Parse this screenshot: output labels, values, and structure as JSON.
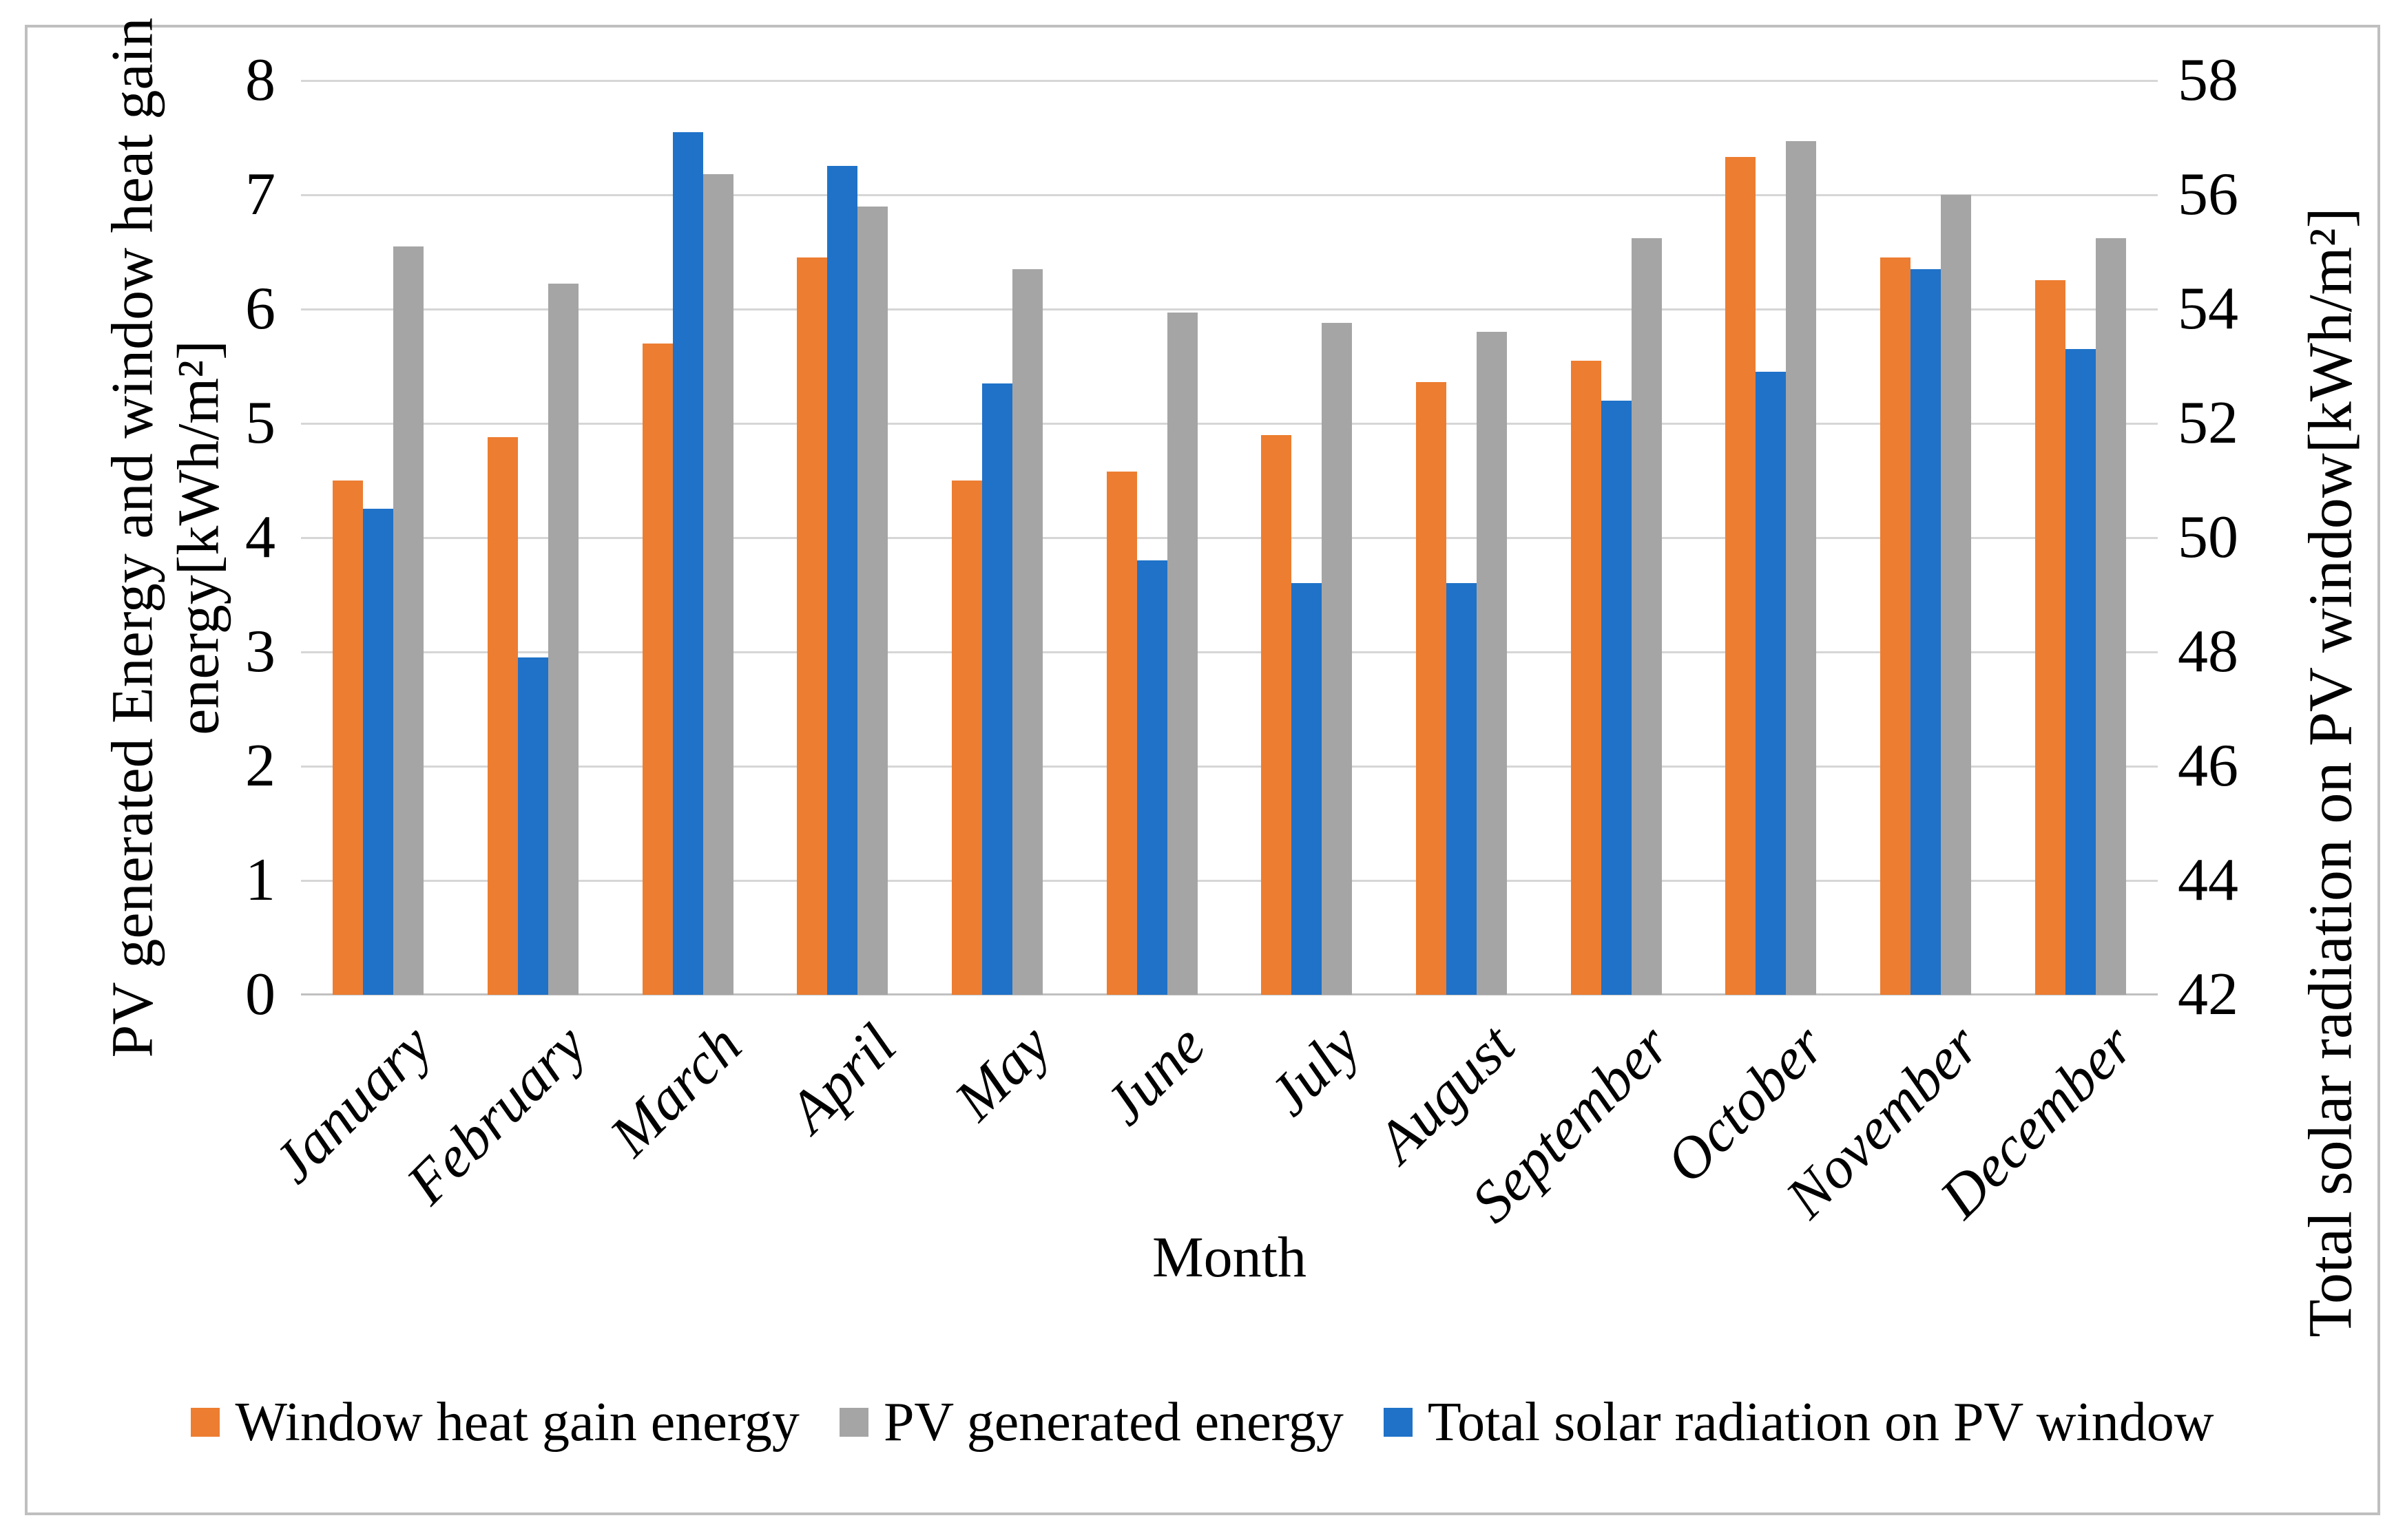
{
  "figure": {
    "background": "#ffffff",
    "border_color": "#bfbfbf"
  },
  "chart_data": {
    "type": "bar",
    "title": "",
    "categories": [
      "January",
      "February",
      "March",
      "April",
      "May",
      "June",
      "July",
      "August",
      "September",
      "October",
      "November",
      "December"
    ],
    "series": [
      {
        "name": "Window heat gain energy",
        "key": "window-heat-gain-energy",
        "color": "#ED7D31",
        "axis": "left",
        "values": [
          4.5,
          4.88,
          5.7,
          6.45,
          4.5,
          4.58,
          4.9,
          5.36,
          5.55,
          7.33,
          6.45,
          6.25
        ]
      },
      {
        "name": "Total solar radiation on PV window",
        "key": "total-solar-radiation-on-pv-window",
        "color": "#1F72C8",
        "axis": "right",
        "values": [
          50.5,
          47.9,
          57.1,
          56.5,
          52.7,
          49.6,
          49.2,
          49.2,
          52.4,
          52.9,
          54.7,
          53.3
        ]
      },
      {
        "name": "PV generated energy",
        "key": "pv-generated-energy",
        "color": "#A5A5A5",
        "axis": "left",
        "values": [
          6.55,
          6.22,
          7.18,
          6.9,
          6.35,
          5.97,
          5.88,
          5.8,
          6.62,
          7.47,
          7.0,
          6.62
        ]
      }
    ],
    "left_axis": {
      "title_line1": "PV generated Energy and window heat gain",
      "title_line2": "energy[kWh/m²]",
      "min": 0,
      "max": 8,
      "ticks": [
        0,
        1,
        2,
        3,
        4,
        5,
        6,
        7,
        8
      ]
    },
    "right_axis": {
      "title": "Total solar radiation on PV window[kWh/m²]",
      "min": 42,
      "max": 58,
      "ticks": [
        42,
        44,
        46,
        48,
        50,
        52,
        54,
        56,
        58
      ]
    },
    "x_axis": {
      "title": "Month"
    },
    "grid": "horizontal",
    "legend_position": "bottom",
    "legend": [
      {
        "label": "Window heat gain energy",
        "key": "window-heat-gain-energy",
        "color": "#ED7D31"
      },
      {
        "label": "PV generated energy",
        "key": "pv-generated-energy",
        "color": "#A5A5A5"
      },
      {
        "label": "Total solar radiation on PV window",
        "key": "total-solar-radiation-on-pv-window",
        "color": "#1F72C8"
      }
    ]
  }
}
